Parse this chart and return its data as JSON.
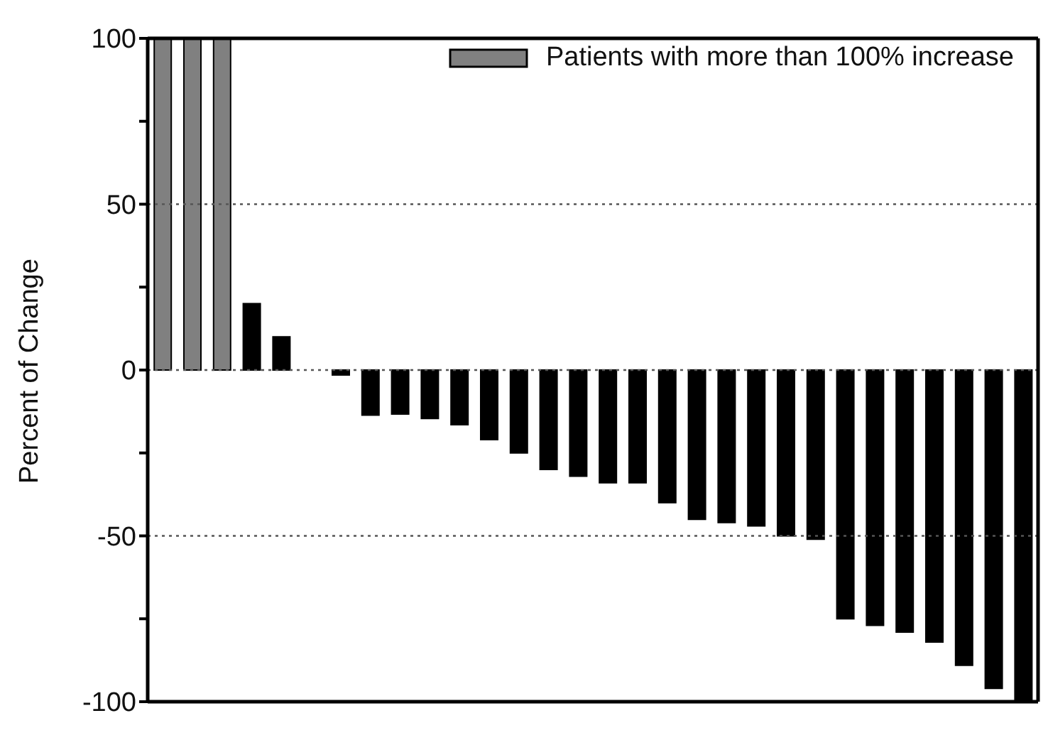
{
  "chart_data": {
    "type": "bar",
    "ylabel": "Percent of Change",
    "categories": [
      null,
      null,
      null,
      null,
      null,
      null,
      null,
      null,
      null,
      null,
      null,
      null,
      null,
      null,
      null,
      null,
      null,
      null,
      null,
      null,
      null,
      null,
      null,
      null,
      null,
      null,
      null,
      null,
      null,
      null
    ],
    "series": [
      {
        "name": "Patients with more than 100% increase",
        "color": "#808080",
        "values": [
          100,
          100,
          100,
          null,
          null,
          null,
          null,
          null,
          null,
          null,
          null,
          null,
          null,
          null,
          null,
          null,
          null,
          null,
          null,
          null,
          null,
          null,
          null,
          null,
          null,
          null,
          null,
          null,
          null,
          null
        ]
      },
      {
        "color": "#000000",
        "values": [
          null,
          null,
          null,
          20,
          10,
          0,
          -1.5,
          -13.6,
          -13.3,
          -14.6,
          -16.5,
          -21,
          -25,
          -30,
          -32,
          -34,
          -34,
          -40,
          -45,
          -46,
          -47,
          -50,
          -51,
          -75,
          -77,
          -79,
          -82,
          -89,
          -96,
          -100
        ]
      }
    ],
    "ylim": [
      -100,
      100
    ],
    "yticks": [
      -100,
      {
        "value": -75,
        "label": null
      },
      -50,
      {
        "value": -25,
        "label": null
      },
      0,
      {
        "value": 25,
        "label": null
      },
      50,
      {
        "value": 75,
        "label": null
      },
      100
    ],
    "ref_lines": [
      {
        "axis": "y",
        "value": 50,
        "line_style": "dotted",
        "color": "#555555"
      },
      {
        "axis": "y",
        "value": 0,
        "line_style": "dotted",
        "color": "#555555"
      },
      {
        "axis": "y",
        "value": -50,
        "line_style": "dotted",
        "color": "#555555"
      }
    ],
    "legend": "top right",
    "tick_labels": "y"
  }
}
